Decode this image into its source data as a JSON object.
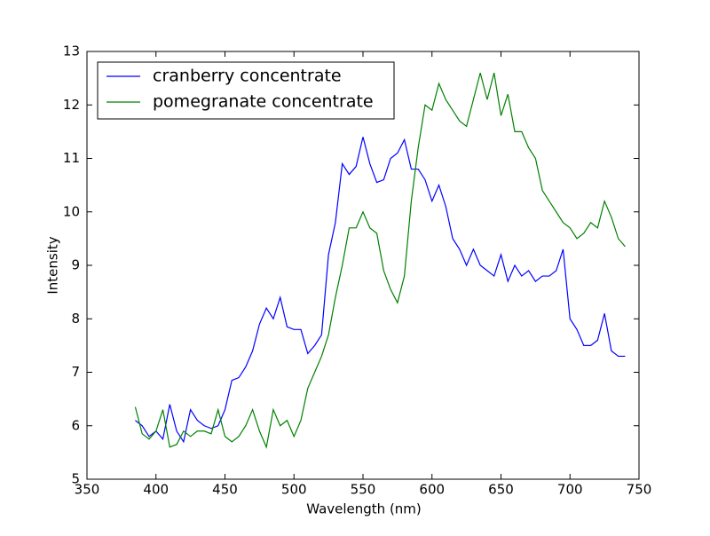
{
  "chart_data": {
    "type": "line",
    "xlabel": "Wavelength (nm)",
    "ylabel": "Intensity",
    "x": [
      385,
      390,
      395,
      400,
      405,
      410,
      415,
      420,
      425,
      430,
      435,
      440,
      445,
      450,
      455,
      460,
      465,
      470,
      475,
      480,
      485,
      490,
      495,
      500,
      505,
      510,
      515,
      520,
      525,
      530,
      535,
      540,
      545,
      550,
      555,
      560,
      565,
      570,
      575,
      580,
      585,
      590,
      595,
      600,
      605,
      610,
      615,
      620,
      625,
      630,
      635,
      640,
      645,
      650,
      655,
      660,
      665,
      670,
      675,
      680,
      685,
      690,
      695,
      700,
      705,
      710,
      715,
      720,
      725,
      730,
      735,
      740
    ],
    "series": [
      {
        "name": "cranberry concentrate",
        "color": "#0000ff",
        "values": [
          6.1,
          6.0,
          5.8,
          5.9,
          5.75,
          6.4,
          5.9,
          5.7,
          6.3,
          6.1,
          6.0,
          5.95,
          6.0,
          6.3,
          6.85,
          6.9,
          7.1,
          7.4,
          7.9,
          8.2,
          8.0,
          8.4,
          7.85,
          7.8,
          7.8,
          7.35,
          7.5,
          7.7,
          9.2,
          9.8,
          10.9,
          10.7,
          10.85,
          11.4,
          10.9,
          10.55,
          10.6,
          11.0,
          11.1,
          11.35,
          10.8,
          10.8,
          10.6,
          10.2,
          10.5,
          10.1,
          9.5,
          9.3,
          9.0,
          9.3,
          9.0,
          8.9,
          8.8,
          9.2,
          8.7,
          9.0,
          8.8,
          8.9,
          8.7,
          8.8,
          8.8,
          8.9,
          9.3,
          8.0,
          7.8,
          7.5,
          7.5,
          7.6,
          8.1,
          7.4,
          7.3,
          7.3
        ]
      },
      {
        "name": "pomegranate concentrate",
        "color": "#008000",
        "values": [
          6.35,
          5.85,
          5.75,
          5.9,
          6.3,
          5.6,
          5.65,
          5.9,
          5.8,
          5.9,
          5.9,
          5.85,
          6.3,
          5.8,
          5.7,
          5.8,
          6.0,
          6.3,
          5.9,
          5.6,
          6.3,
          6.0,
          6.1,
          5.8,
          6.1,
          6.7,
          7.0,
          7.3,
          7.7,
          8.4,
          9.0,
          9.7,
          9.7,
          10.0,
          9.7,
          9.6,
          8.9,
          8.55,
          8.3,
          8.8,
          10.2,
          11.2,
          12.0,
          11.9,
          12.4,
          12.1,
          11.9,
          11.7,
          11.6,
          12.1,
          12.6,
          12.1,
          12.6,
          11.8,
          12.2,
          11.5,
          11.5,
          11.2,
          11.0,
          10.4,
          10.2,
          10.0,
          9.8,
          9.7,
          9.5,
          9.6,
          9.8,
          9.7,
          10.2,
          9.9,
          9.5,
          9.35
        ]
      }
    ],
    "xlim": [
      350,
      750
    ],
    "xticks": [
      350,
      400,
      450,
      500,
      550,
      600,
      650,
      700,
      750
    ],
    "ylim": [
      5,
      13
    ],
    "yticks": [
      5,
      6,
      7,
      8,
      9,
      10,
      11,
      12,
      13
    ],
    "legend": "upper left",
    "grid": false
  }
}
